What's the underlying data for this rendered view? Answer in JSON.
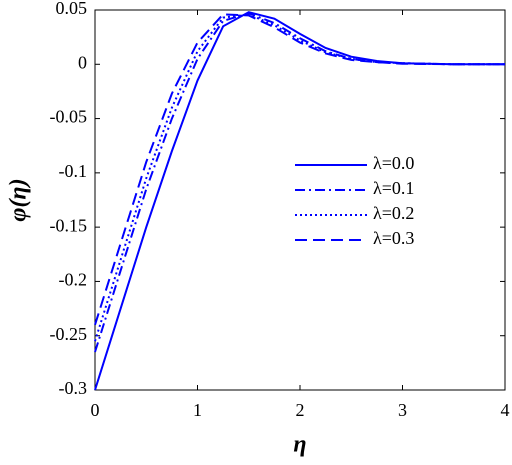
{
  "chart_data": {
    "type": "line",
    "xlabel": "η",
    "ylabel": "φ(η)",
    "x": [
      0,
      0.25,
      0.5,
      0.75,
      1,
      1.25,
      1.5,
      1.75,
      2,
      2.25,
      2.5,
      2.75,
      3,
      3.5,
      4
    ],
    "series": [
      {
        "name": "λ=0.0",
        "color": "#0000ff",
        "line_style": "solid",
        "values": [
          -0.3,
          -0.225,
          -0.15,
          -0.08,
          -0.015,
          0.035,
          0.048,
          0.042,
          0.028,
          0.015,
          0.007,
          0.003,
          0.001,
          0,
          0
        ]
      },
      {
        "name": "λ=0.1",
        "color": "#0000ff",
        "line_style": "dashdot",
        "values": [
          -0.265,
          -0.19,
          -0.115,
          -0.05,
          0.005,
          0.04,
          0.047,
          0.038,
          0.024,
          0.012,
          0.005,
          0.002,
          0.001,
          0,
          0
        ]
      },
      {
        "name": "λ=0.2",
        "color": "#0000ff",
        "line_style": "dotted",
        "values": [
          -0.255,
          -0.18,
          -0.105,
          -0.04,
          0.012,
          0.043,
          0.046,
          0.036,
          0.022,
          0.011,
          0.005,
          0.002,
          0.001,
          0,
          0
        ]
      },
      {
        "name": "λ=0.3",
        "color": "#0000ff",
        "line_style": "dashed",
        "values": [
          -0.24,
          -0.165,
          -0.09,
          -0.027,
          0.02,
          0.046,
          0.045,
          0.034,
          0.02,
          0.01,
          0.004,
          0.002,
          0.0005,
          0,
          0
        ]
      }
    ],
    "xlim": [
      0,
      4
    ],
    "xticks": [
      0,
      1,
      2,
      3,
      4
    ],
    "ylim": [
      -0.3,
      0.05
    ],
    "yticks": [
      -0.3,
      -0.25,
      -0.2,
      -0.15,
      -0.1,
      -0.05,
      0,
      0.05
    ],
    "grid": false,
    "legend_position": "right"
  }
}
